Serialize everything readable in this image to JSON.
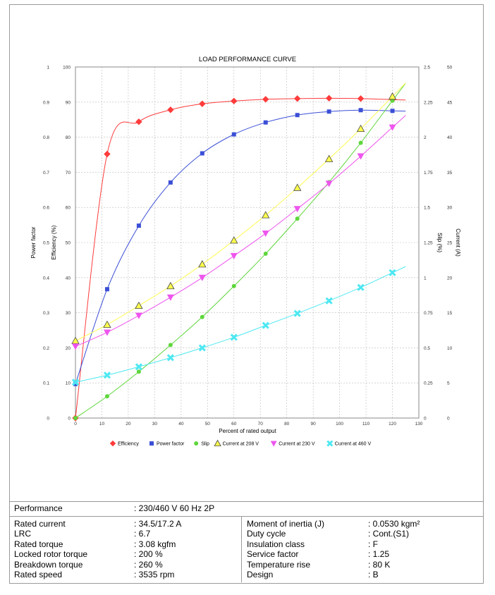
{
  "chart_data": {
    "type": "line",
    "title": "LOAD PERFORMANCE CURVE",
    "xlabel": "Percent of rated output",
    "xlim": [
      0,
      130
    ],
    "x_ticks": [
      "0",
      "10",
      "20",
      "30",
      "40",
      "50",
      "60",
      "70",
      "80",
      "90",
      "100",
      "110",
      "120",
      "130"
    ],
    "axes": {
      "power_factor": {
        "label": "Power factor",
        "range": [
          0,
          1
        ],
        "ticks": [
          "0",
          "0.1",
          "0.2",
          "0.3",
          "0.4",
          "0.5",
          "0.6",
          "0.7",
          "0.8",
          "0.9",
          "1"
        ]
      },
      "efficiency": {
        "label": "Efficiency (%)",
        "range": [
          0,
          100
        ],
        "ticks": [
          "0",
          "10",
          "20",
          "30",
          "40",
          "50",
          "60",
          "70",
          "80",
          "90",
          "100"
        ]
      },
      "slip": {
        "label": "Slip (%)",
        "range": [
          0,
          2.5
        ],
        "ticks": [
          "0",
          "0.25",
          "0.5",
          "0.75",
          "1",
          "1.25",
          "1.5",
          "1.75",
          "2",
          "2.25",
          "2.5"
        ]
      },
      "current": {
        "label": "Current (A)",
        "range": [
          0,
          50
        ],
        "ticks": [
          "0",
          "5",
          "10",
          "15",
          "20",
          "25",
          "30",
          "35",
          "40",
          "45",
          "50"
        ]
      }
    },
    "grid": true,
    "legend_position": "bottom",
    "series": [
      {
        "name": "Efficiency",
        "axis": "efficiency",
        "color": "#ff3b3b",
        "marker": "diamond",
        "x": [
          0,
          12,
          24,
          36,
          48,
          60,
          72,
          84,
          96,
          108,
          120
        ],
        "y": [
          0,
          75.2,
          84.4,
          87.8,
          89.5,
          90.3,
          90.8,
          91.0,
          91.1,
          91.0,
          90.7
        ]
      },
      {
        "name": "Power factor",
        "axis": "power_factor",
        "color": "#3b4fd6",
        "marker": "square",
        "x": [
          0,
          12,
          24,
          36,
          48,
          60,
          72,
          84,
          96,
          108,
          120
        ],
        "y": [
          0.097,
          0.367,
          0.548,
          0.671,
          0.754,
          0.808,
          0.842,
          0.863,
          0.873,
          0.877,
          0.875
        ]
      },
      {
        "name": "Slip",
        "axis": "slip",
        "color": "#5ed63b",
        "marker": "circle",
        "x": [
          0,
          12,
          24,
          36,
          48,
          60,
          72,
          84,
          96,
          108,
          120
        ],
        "y": [
          0,
          0.155,
          0.33,
          0.52,
          0.72,
          0.94,
          1.17,
          1.42,
          1.68,
          1.96,
          2.26
        ]
      },
      {
        "name": "Current at 208 V",
        "axis": "current",
        "color": "#ffff4d",
        "marker": "triangle",
        "x": [
          0,
          12,
          24,
          36,
          48,
          60,
          72,
          84,
          96,
          108,
          120
        ],
        "y": [
          11.0,
          13.3,
          16.0,
          18.8,
          21.9,
          25.3,
          28.9,
          32.8,
          36.9,
          41.2,
          45.8
        ]
      },
      {
        "name": "Current at 230 V",
        "axis": "current",
        "color": "#ee55ee",
        "marker": "triangle-down",
        "x": [
          0,
          12,
          24,
          36,
          48,
          60,
          72,
          84,
          96,
          108,
          120
        ],
        "y": [
          10.2,
          12.2,
          14.6,
          17.2,
          20.0,
          23.1,
          26.3,
          29.8,
          33.4,
          37.3,
          41.4
        ]
      },
      {
        "name": "Current at 460 V",
        "axis": "current",
        "color": "#4ee8f2",
        "marker": "x",
        "x": [
          0,
          12,
          24,
          36,
          48,
          60,
          72,
          84,
          96,
          108,
          120
        ],
        "y": [
          5.1,
          6.1,
          7.3,
          8.6,
          10.0,
          11.5,
          13.2,
          14.9,
          16.7,
          18.6,
          20.7
        ]
      }
    ]
  },
  "specs": {
    "performance_label": "Performance",
    "performance_value": ": 230/460 V 60 Hz 2P",
    "left": [
      {
        "label": "Rated current",
        "value": ": 34.5/17.2 A"
      },
      {
        "label": "LRC",
        "value": ": 6.7"
      },
      {
        "label": "Rated torque",
        "value": ": 3.08 kgfm"
      },
      {
        "label": "Locked rotor torque",
        "value": ": 200 %"
      },
      {
        "label": "Breakdown torque",
        "value": ": 260 %"
      },
      {
        "label": "Rated speed",
        "value": ": 3535 rpm"
      }
    ],
    "right": [
      {
        "label": "Moment of inertia (J)",
        "value": ": 0.0530 kgm²"
      },
      {
        "label": "Duty cycle",
        "value": ": Cont.(S1)"
      },
      {
        "label": "Insulation class",
        "value": ": F"
      },
      {
        "label": "Service factor",
        "value": ": 1.25"
      },
      {
        "label": "Temperature rise",
        "value": ": 80 K"
      },
      {
        "label": "Design",
        "value": ": B"
      }
    ]
  }
}
